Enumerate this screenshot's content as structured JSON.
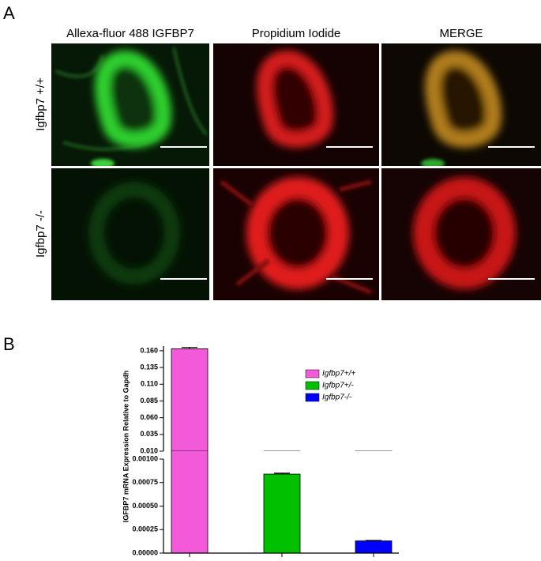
{
  "panel_a": {
    "label": "A",
    "columns": [
      "Allexa-fluor 488 IGFBP7",
      "Propidium Iodide",
      "MERGE"
    ],
    "rows": [
      "Igfbp7 +/+",
      "Igfbp7 -/-"
    ]
  },
  "chart_data": {
    "type": "bar",
    "panel_label": "B",
    "y_label": "IGFBP7 mRNA Expression Relative to Gapdh",
    "segments": [
      {
        "ylim": [
          0,
          0.001
        ],
        "yticks": [
          {
            "value": 0,
            "label": "0.00000"
          },
          0.00025,
          {
            "value": 0.0005,
            "label": "0.00050"
          },
          0.00075,
          {
            "value": 0.001,
            "label": "0.00100"
          }
        ]
      },
      {
        "ylim": [
          0.01,
          0.167
        ],
        "yticks": [
          {
            "value": 0.01,
            "label": "0.010"
          },
          0.035,
          {
            "value": 0.06,
            "label": "0.060"
          },
          0.085,
          {
            "value": 0.11,
            "label": "0.110"
          },
          0.135,
          {
            "value": 0.16,
            "label": "0.160"
          }
        ]
      }
    ],
    "series": [
      {
        "name": "Igfbp7+/+",
        "color": "#f25ad9",
        "values": [
          0.163
        ],
        "errors": [
          0.002
        ]
      },
      {
        "name": "Igfbp7+/-",
        "color": "#00c000",
        "values": [
          0.00084
        ],
        "errors": [
          1e-05
        ]
      },
      {
        "name": "Igfbp7-/-",
        "color": "#0000ff",
        "values": [
          0.00013
        ],
        "errors": [
          5e-06
        ]
      }
    ]
  }
}
